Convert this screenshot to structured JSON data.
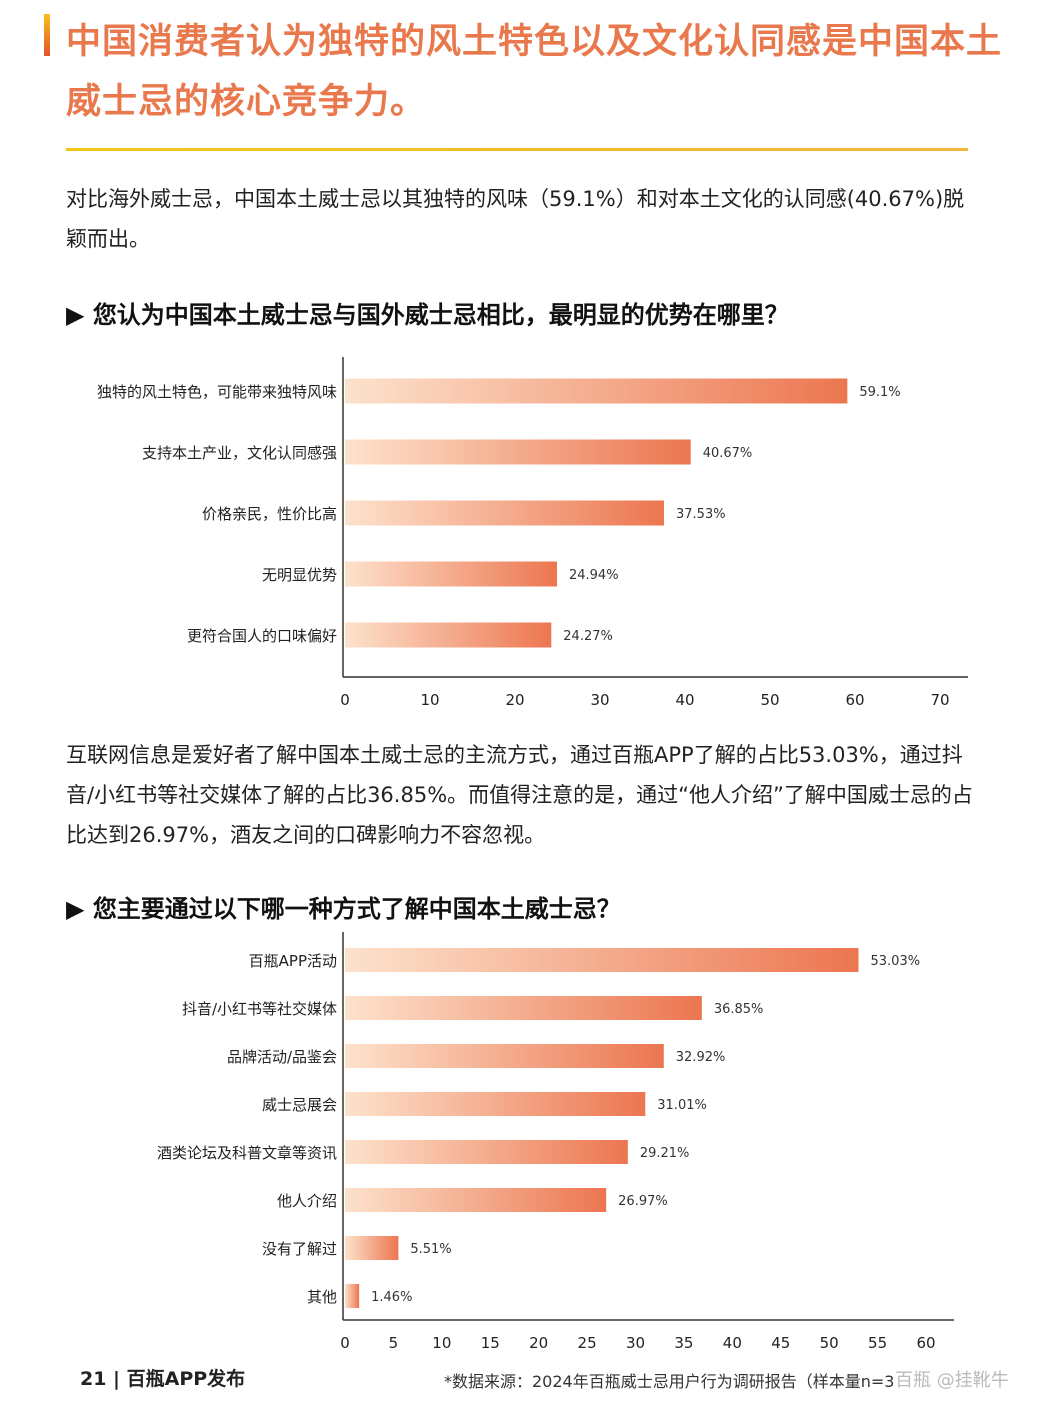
{
  "title": "中国消费者认为独特的风土特色以及文化认同感是中国本土威士忌的核心竞争力。",
  "intro": "对比海外威士忌，中国本土威士忌以其独特的风味（59.1%）和对本土文化的认同感(40.67%)脱颖而出。",
  "question1": "▶ 您认为中国本土威士忌与国外威士忌相比，最明显的优势在哪里？",
  "paragraph2": "互联网信息是爱好者了解中国本土威士忌的主流方式，通过百瓶APP了解的占比53.03%，通过抖音/小红书等社交媒体了解的占比36.85%。而值得注意的是，通过“他人介绍”了解中国威士忌的占比达到26.97%，酒友之间的口碑影响力不容忽视。",
  "question2": "▶ 您主要通过以下哪一种方式了解中国本土威士忌？",
  "colors": {
    "title": "#e9784c",
    "bar_start": "#fde2cc",
    "bar_end": "#ec7650"
  },
  "chart_data": [
    {
      "type": "bar",
      "orientation": "horizontal",
      "categories": [
        "独特的风土特色，可能带来独特风味",
        "支持本土产业，文化认同感强",
        "价格亲民，性价比高",
        "无明显优势",
        "更符合国人的口味偏好"
      ],
      "values": [
        59.1,
        40.67,
        37.53,
        24.94,
        24.27
      ],
      "labels": [
        "59.1%",
        "40.67%",
        "37.53%",
        "24.94%",
        "24.27%"
      ],
      "xlim": [
        0,
        70
      ],
      "xticks": [
        0,
        10,
        20,
        30,
        40,
        50,
        60,
        70
      ],
      "grid": false
    },
    {
      "type": "bar",
      "orientation": "horizontal",
      "categories": [
        "百瓶APP活动",
        "抖音/小红书等社交媒体",
        "品牌活动/品鉴会",
        "威士忌展会",
        "酒类论坛及科普文章等资讯",
        "他人介绍",
        "没有了解过",
        "其他"
      ],
      "values": [
        53.03,
        36.85,
        32.92,
        31.01,
        29.21,
        26.97,
        5.51,
        1.46
      ],
      "labels": [
        "53.03%",
        "36.85%",
        "32.92%",
        "31.01%",
        "29.21%",
        "26.97%",
        "5.51%",
        "1.46%"
      ],
      "xlim": [
        0,
        60
      ],
      "xticks": [
        0,
        5,
        10,
        15,
        20,
        25,
        30,
        35,
        40,
        45,
        50,
        55,
        60
      ],
      "grid": false
    }
  ],
  "footer": {
    "page": "21  |  百瓶APP发布",
    "source": "*数据来源：2024年百瓶威士忌用户行为调研报告（样本量n=3",
    "watermark": "百瓶 @挂靴牛"
  }
}
